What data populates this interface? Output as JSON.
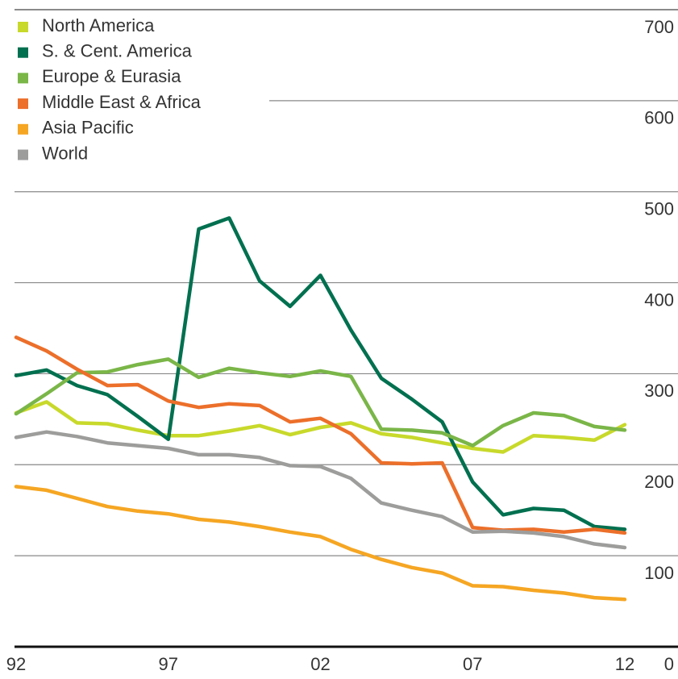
{
  "chart_data": {
    "type": "line",
    "categories": [
      "92",
      null,
      null,
      null,
      null,
      "97",
      null,
      null,
      null,
      null,
      "02",
      null,
      null,
      null,
      null,
      "07",
      null,
      null,
      null,
      null,
      "12"
    ],
    "series": [
      {
        "name": "North America",
        "color": "#c8d92b",
        "values": [
          257,
          269,
          246,
          245,
          238,
          232,
          232,
          237,
          243,
          233,
          241,
          246,
          234,
          230,
          224,
          218,
          214,
          232,
          230,
          227,
          244
        ]
      },
      {
        "name": "S. & Cent. America",
        "color": "#00704f",
        "values": [
          298,
          304,
          287,
          277,
          253,
          228,
          459,
          471,
          402,
          374,
          408,
          348,
          295,
          272,
          247,
          181,
          145,
          152,
          150,
          132,
          129
        ]
      },
      {
        "name": "Europe & Eurasia",
        "color": "#7ab648",
        "values": [
          256,
          278,
          301,
          302,
          310,
          316,
          296,
          306,
          301,
          297,
          303,
          297,
          239,
          238,
          235,
          221,
          243,
          257,
          254,
          242,
          238
        ]
      },
      {
        "name": "Middle East & Africa",
        "color": "#ec6f2a",
        "values": [
          340,
          325,
          305,
          287,
          288,
          270,
          263,
          267,
          265,
          247,
          251,
          234,
          202,
          201,
          202,
          131,
          128,
          129,
          126,
          129,
          125
        ]
      },
      {
        "name": "Asia Pacific",
        "color": "#f5a623",
        "values": [
          176,
          172,
          163,
          154,
          149,
          146,
          140,
          137,
          132,
          126,
          121,
          107,
          96,
          87,
          81,
          67,
          66,
          62,
          59,
          54,
          52
        ]
      },
      {
        "name": "World",
        "color": "#9d9d9c",
        "values": [
          230,
          236,
          231,
          224,
          221,
          218,
          211,
          211,
          208,
          199,
          198,
          185,
          158,
          150,
          143,
          126,
          127,
          125,
          121,
          113,
          109
        ]
      }
    ],
    "ylim": [
      0,
      700
    ],
    "yticks": [
      0,
      100,
      200,
      300,
      400,
      500,
      600,
      700
    ],
    "grid": true,
    "legend": "upper left"
  }
}
